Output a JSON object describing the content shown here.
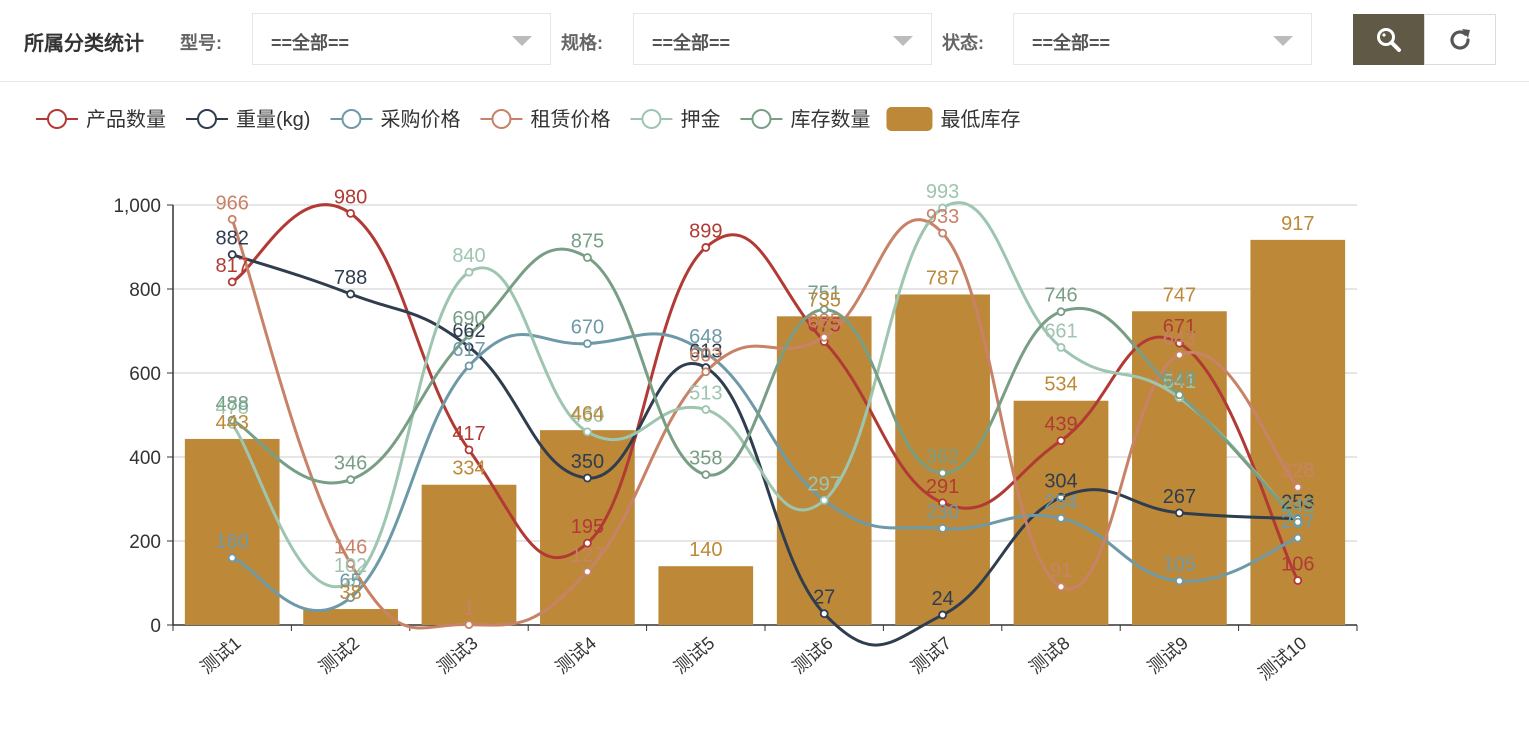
{
  "header": {
    "title": "所属分类统计",
    "filters": [
      {
        "label": "型号:",
        "value": "==全部=="
      },
      {
        "label": "规格:",
        "value": "==全部=="
      },
      {
        "label": "状态:",
        "value": "==全部=="
      }
    ],
    "search_icon": "search-icon",
    "refresh_icon": "refresh-icon"
  },
  "colors": {
    "search_button": "#5f5945"
  },
  "chart_data": {
    "type": "bar",
    "categories": [
      "测试1",
      "测试2",
      "测试3",
      "测试4",
      "测试5",
      "测试6",
      "测试7",
      "测试8",
      "测试9",
      "测试10"
    ],
    "ylim": [
      0,
      1000
    ],
    "yticks": [
      "0",
      "200",
      "400",
      "600",
      "800",
      "1,000"
    ],
    "legend_position": "top-left",
    "grid": true,
    "series": [
      {
        "name": "产品数量",
        "type": "line",
        "color": "#b23a35",
        "values": [
          817,
          980,
          417,
          195,
          899,
          675,
          291,
          439,
          671,
          106
        ]
      },
      {
        "name": "重量(kg)",
        "type": "line",
        "color": "#2f3d4f",
        "values": [
          882,
          788,
          662,
          350,
          613,
          27,
          24,
          304,
          267,
          253
        ]
      },
      {
        "name": "采购价格",
        "type": "line",
        "color": "#6d9aa6",
        "values": [
          160,
          65,
          617,
          670,
          648,
          297,
          230,
          254,
          105,
          207
        ]
      },
      {
        "name": "租赁价格",
        "type": "line",
        "color": "#c88267",
        "values": [
          966,
          146,
          1,
          127,
          603,
          685,
          933,
          91,
          643,
          328
        ]
      },
      {
        "name": "押金",
        "type": "line",
        "color": "#9ec5b0",
        "values": [
          478,
          102,
          840,
          460,
          513,
          297,
          993,
          661,
          541,
          245
        ]
      },
      {
        "name": "库存数量",
        "type": "line",
        "color": "#789e86",
        "values": [
          488,
          346,
          690,
          875,
          358,
          751,
          362,
          746,
          548,
          245
        ]
      },
      {
        "name": "最低库存",
        "type": "bar",
        "color": "#bd8938",
        "values": [
          443,
          38,
          334,
          464,
          140,
          735,
          787,
          534,
          747,
          917
        ]
      }
    ]
  }
}
